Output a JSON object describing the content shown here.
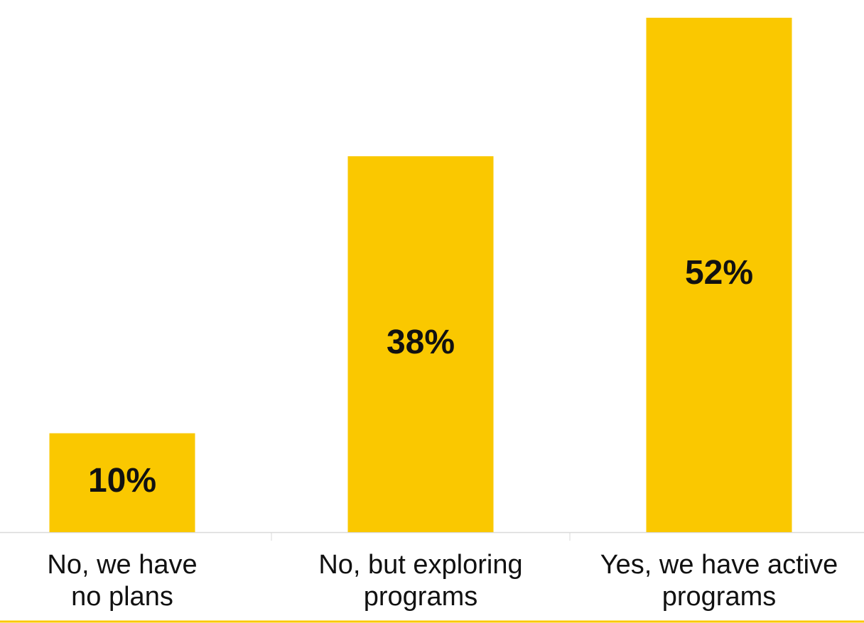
{
  "chart_data": {
    "type": "bar",
    "categories": [
      "No, we have\nno plans",
      "No, but exploring\nprograms",
      "Yes, we have active\nprograms"
    ],
    "values": [
      10,
      38,
      52
    ],
    "value_labels": [
      "10%",
      "38%",
      "52%"
    ],
    "color": "#fac800"
  }
}
